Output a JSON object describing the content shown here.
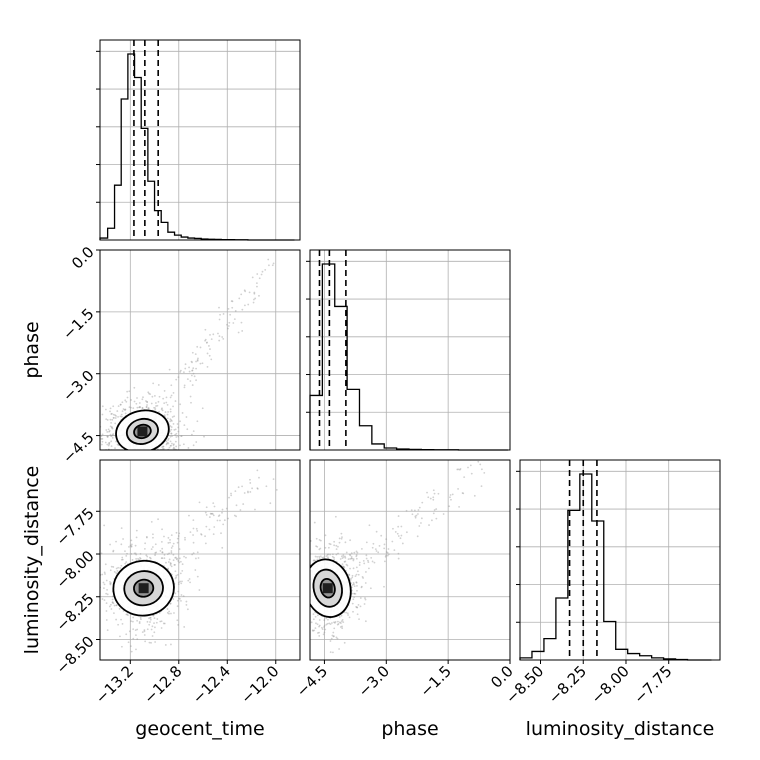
{
  "chart_data": {
    "type": "corner",
    "parameters": [
      "geocent_time",
      "phase",
      "luminosity_distance"
    ],
    "xlabels": [
      "geocent_time",
      "phase",
      "luminosity_distance"
    ],
    "ylabels": [
      "",
      "phase",
      "luminosity_distance"
    ],
    "ranges": {
      "geocent_time": [
        -13.45,
        -11.8
      ],
      "phase": [
        -4.85,
        0.0
      ],
      "luminosity_distance": [
        -8.62,
        -7.45
      ]
    },
    "ticks": {
      "geocent_time": [
        -13.2,
        -12.8,
        -12.4,
        -12.0
      ],
      "phase": [
        -4.5,
        -3.0,
        -1.5,
        0.0
      ],
      "luminosity_distance": [
        -8.5,
        -8.25,
        -8.0,
        -7.75
      ]
    },
    "tick_labels": {
      "geocent_time": [
        "−13.2",
        "−12.8",
        "−12.4",
        "−12.0"
      ],
      "phase": [
        "−4.5",
        "−3.0",
        "−1.5",
        "0.0"
      ],
      "luminosity_distance": [
        "−8.50",
        "−8.25",
        "−8.00",
        "−7.75"
      ],
      "luminosity_distance_y": [
        "−8.50",
        "−8.25",
        "−8.00",
        "−7.75"
      ]
    },
    "quantiles": {
      "geocent_time": [
        -13.17,
        -13.08,
        -12.97
      ],
      "phase": [
        -4.62,
        -4.38,
        -3.98
      ],
      "luminosity_distance": [
        -8.33,
        -8.25,
        -8.17
      ]
    },
    "histograms": {
      "geocent_time": {
        "bin_edges": [
          -13.45,
          -13.387,
          -13.33,
          -13.275,
          -13.22,
          -13.165,
          -13.11,
          -13.055,
          -13.0,
          -12.945,
          -12.89,
          -12.835,
          -12.78,
          -12.725,
          -12.67,
          -12.615,
          -12.56,
          -12.505,
          -12.45,
          -12.395,
          -12.34,
          -12.285,
          -12.23,
          -12.175,
          -12.12,
          -12.065,
          -12.01,
          -11.955,
          -11.9,
          -11.845
        ],
        "counts": [
          0.01,
          0.06,
          0.28,
          0.72,
          0.95,
          0.83,
          0.57,
          0.3,
          0.15,
          0.09,
          0.04,
          0.025,
          0.015,
          0.01,
          0.008,
          0.005,
          0.004,
          0.003,
          0.002,
          0.002,
          0.001,
          0.001,
          0,
          0,
          0,
          0,
          0,
          0,
          0
        ]
      },
      "phase": {
        "bin_edges": [
          -4.85,
          -4.55,
          -4.25,
          -3.95,
          -3.65,
          -3.35,
          -3.05,
          -2.75,
          -2.45,
          -2.15,
          -1.85,
          -1.55,
          -1.25,
          -0.95,
          -0.65,
          -0.35,
          -0.05
        ],
        "counts": [
          0.27,
          0.92,
          0.71,
          0.3,
          0.12,
          0.03,
          0.01,
          0.005,
          0.003,
          0.002,
          0.001,
          0.001,
          0,
          0,
          0,
          0
        ]
      },
      "luminosity_distance": {
        "bin_edges": [
          -8.62,
          -8.55,
          -8.48,
          -8.41,
          -8.34,
          -8.27,
          -8.2,
          -8.13,
          -8.06,
          -7.99,
          -7.92,
          -7.85,
          -7.78,
          -7.71,
          -7.64,
          -7.57,
          -7.5
        ],
        "counts": [
          0.01,
          0.04,
          0.1,
          0.29,
          0.7,
          0.87,
          0.65,
          0.18,
          0.05,
          0.03,
          0.02,
          0.01,
          0.005,
          0.002,
          0,
          0
        ]
      }
    },
    "pairs": [
      {
        "x": "geocent_time",
        "y": "phase",
        "peak": [
          -13.1,
          -4.4
        ],
        "spread": [
          0.1,
          0.22
        ],
        "contours": [
          {
            "level": "outer",
            "rx": 0.22,
            "ry": 0.5,
            "angle": 0.58
          },
          {
            "level": "middle",
            "rx": 0.13,
            "ry": 0.3,
            "angle": 0.58
          },
          {
            "level": "inner",
            "rx": 0.07,
            "ry": 0.16,
            "angle": 0.58
          }
        ]
      },
      {
        "x": "geocent_time",
        "y": "luminosity_distance",
        "peak": [
          -13.09,
          -8.2
        ],
        "spread": [
          0.1,
          0.08
        ],
        "contours": [
          {
            "level": "outer",
            "rx": 0.25,
            "ry": 0.16,
            "angle": 0.25
          },
          {
            "level": "middle",
            "rx": 0.16,
            "ry": 0.1,
            "angle": 0.25
          },
          {
            "level": "inner",
            "rx": 0.08,
            "ry": 0.05,
            "angle": 0.25
          }
        ]
      },
      {
        "x": "phase",
        "y": "luminosity_distance",
        "peak": [
          -4.42,
          -8.2
        ],
        "spread": [
          0.22,
          0.08
        ],
        "contours": [
          {
            "level": "outer",
            "rx": 0.55,
            "ry": 0.17,
            "angle": 0.3
          },
          {
            "level": "middle",
            "rx": 0.34,
            "ry": 0.11,
            "angle": 0.3
          },
          {
            "level": "inner",
            "rx": 0.17,
            "ry": 0.055,
            "angle": 0.3
          }
        ]
      }
    ],
    "grid": true,
    "colors": {
      "line": "#000000",
      "grid": "#b0b0b0",
      "points": "#9a9a9a",
      "fill_dark": "#1e1e1e",
      "fill_mid": "#8a8a8a",
      "fill_light": "#d0d0d0"
    }
  }
}
